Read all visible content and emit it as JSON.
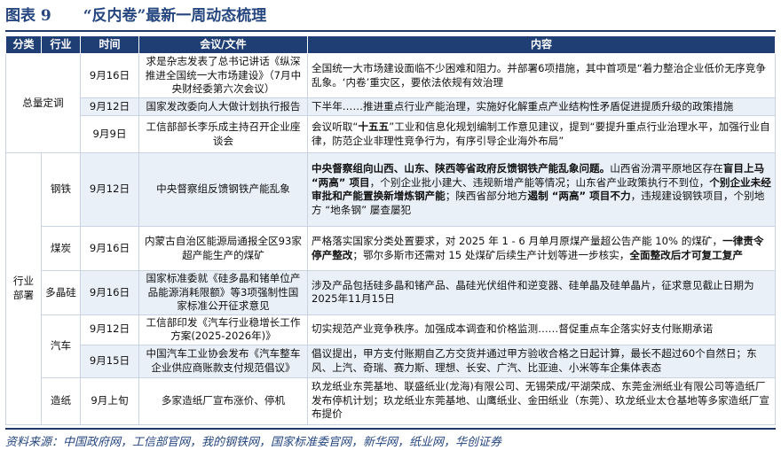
{
  "title": {
    "label": "图表 9",
    "text": "“反内卷”最新一周动态梳理"
  },
  "table": {
    "header": [
      "分类",
      "行业",
      "时间",
      "会议/文件",
      "内容"
    ],
    "groups": [
      {
        "category": "总量定调",
        "rows": [
          {
            "date": "9月16日",
            "doc": "求是杂志发表了总书记讲话《纵深推进全国统一大市场建设》（7月中央财经委第六次会议）",
            "content": [
              {
                "text": "全国统一大市场建设面临不少困难和阻力。并部署6项措施，其中首项是“着力整治企业低价无序竞争乱象。‘内卷’重灾区，要依法依规有效治理",
                "bold": false
              }
            ]
          },
          {
            "date": "9月12日",
            "doc": "国家发改委向人大做计划执行报告",
            "content": [
              {
                "text": "下半年……推进重点行业产能治理，实施好化解重点产业结构性矛盾促进提质升级的政策措施",
                "bold": false
              }
            ]
          },
          {
            "date": "9月9日",
            "doc": "工信部部长李乐成主持召开企业座谈会",
            "content": [
              {
                "text": "会议听取“",
                "bold": false
              },
              {
                "text": "十五五",
                "bold": true
              },
              {
                "text": "”工业和信息化规划编制工作意见建议，提到“要提升重点行业治理水平，加强行业自律，防范企业非理性竞争行为，有序引导企业海外布局”",
                "bold": false
              }
            ]
          }
        ]
      },
      {
        "category": "行业部署",
        "industries": [
          {
            "name": "钢铁",
            "rows": [
              {
                "date": "9月12日",
                "doc": "中央督察组反馈钢铁产能乱象",
                "content": [
                  {
                    "text": "中央督察组向山西、山东、陕西等省政府反馈钢铁产能乱象问题。",
                    "bold": true
                  },
                  {
                    "text": "山西省汾渭平原地区存在",
                    "bold": false
                  },
                  {
                    "text": "盲目上马 “两高” 项目",
                    "bold": true
                  },
                  {
                    "text": "，个别企业批小建大、违规新增产能等情况；山东省产业政策执行不到位，",
                    "bold": false
                  },
                  {
                    "text": "个别企业未经审批和产能置换新增炼钢产能",
                    "bold": true
                  },
                  {
                    "text": "；陕西省部分地方",
                    "bold": false
                  },
                  {
                    "text": "遏制 “两高” 项目不力",
                    "bold": true
                  },
                  {
                    "text": "，违规建设钢铁项目，个别地方 “地条钢” 屡查屡犯",
                    "bold": false
                  }
                ]
              }
            ]
          },
          {
            "name": "煤炭",
            "rows": [
              {
                "date": "9月16日",
                "doc": "内蒙古自治区能源局通报全区93家超产能生产的煤矿",
                "content": [
                  {
                    "text": "严格落实国家分类处置要求，对 2025 年 1 - 6 月单月原煤产量超公告产能 10% 的煤矿，",
                    "bold": false
                  },
                  {
                    "text": "一律责令停产整改",
                    "bold": true
                  },
                  {
                    "text": "；鄂尔多斯市还需对 15 处煤矿后续生产计划等进一步核实，",
                    "bold": false
                  },
                  {
                    "text": "全面整改后才可复工复产",
                    "bold": true
                  }
                ]
              }
            ]
          },
          {
            "name": "多晶硅",
            "rows": [
              {
                "date": "9月16日",
                "doc": "国家标准委就《硅多晶和锗单位产品能源消耗限额》等3项强制性国家标准公开征求意见",
                "content": [
                  {
                    "text": "涉及产品包括硅多晶和锗产品、晶硅光伏组件和逆变器、硅单晶及硅单晶片，征求意见截止日期为2025年11月15日",
                    "bold": false
                  }
                ]
              }
            ]
          },
          {
            "name": "汽车",
            "rows": [
              {
                "date": "9月12日",
                "doc": "工信部印发《汽车行业稳增长工作方案(2025-2026年)》",
                "content": [
                  {
                    "text": "切实规范产业竞争秩序。加强成本调查和价格监测……督促重点车企落实好支付账期承诺",
                    "bold": false
                  }
                ]
              },
              {
                "date": "9月15日",
                "doc": "中国汽车工业协会发布《汽车整车企业供应商账款支付规范倡议》",
                "content": [
                  {
                    "text": "倡议提出，甲方支付账期自乙方交货并通过甲方验收合格之日起计算，最长不超过60个自然日；东风、上汽、奇瑞、赛力斯、理想、长安、广汽、比亚迪、小米等车企集体表态",
                    "bold": false
                  }
                ]
              }
            ]
          },
          {
            "name": "造纸",
            "rows": [
              {
                "date": "9月上旬",
                "doc": "多家造纸厂宣布涨价、停机",
                "content": [
                  {
                    "text": "玖龙纸业东莞基地、联盛纸业(龙海)有限公司、无锡荣成/平湖荣成、东莞金洲纸业有限公司等造纸厂发布停机计划；玖龙纸业东莞基地、山鹰纸业、金田纸业（东莞）、玖龙纸业太仓基地等多家造纸厂宣布提价",
                    "bold": false
                  }
                ]
              }
            ]
          }
        ]
      }
    ]
  },
  "source": "资料来源：中国政府网，工信部官网，我的钢铁网，国家标准委官网，新华网，纸业网，华创证券"
}
